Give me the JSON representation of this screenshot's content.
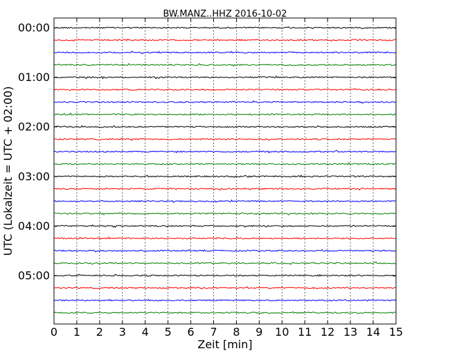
{
  "chart_data": {
    "type": "line",
    "title": "BW.MANZ..HHZ 2016-10-02",
    "xlabel": "Zeit  [min]",
    "ylabel": "UTC (Lokalzeit = UTC + 02:00)",
    "xlim": [
      0,
      15
    ],
    "x_ticks": [
      "0",
      "1",
      "2",
      "3",
      "4",
      "5",
      "6",
      "7",
      "8",
      "9",
      "10",
      "11",
      "12",
      "13",
      "14",
      "15"
    ],
    "y_tick_labels": [
      "00:00",
      "01:00",
      "02:00",
      "03:00",
      "04:00",
      "05:00"
    ],
    "trace_interval_min": 15,
    "trace_count": 24,
    "trace_colors": [
      "#000000",
      "#ff0000",
      "#0000ff",
      "#008000"
    ],
    "grid": "vertical dotted"
  }
}
